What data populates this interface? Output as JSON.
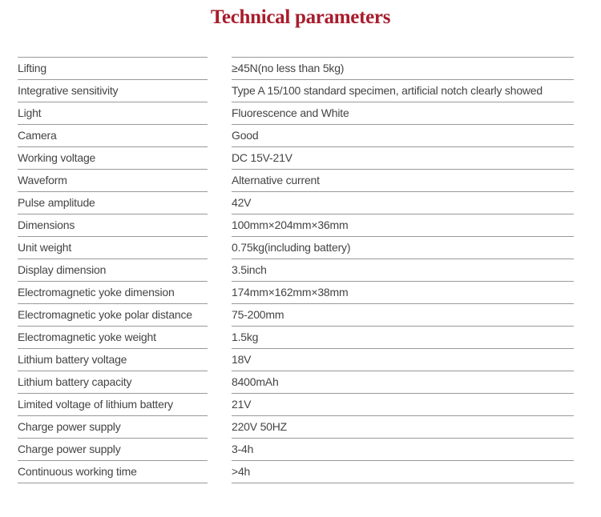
{
  "title": "Technical parameters",
  "accent_color": "#a81c2c",
  "rows": [
    {
      "label": "Lifting",
      "value": "≥45N(no less than 5kg)"
    },
    {
      "label": "Integrative sensitivity",
      "value": "Type A 15/100 standard specimen, artificial notch clearly showed"
    },
    {
      "label": "Light",
      "value": "Fluorescence and White"
    },
    {
      "label": "Camera",
      "value": "Good"
    },
    {
      "label": "Working voltage",
      "value": "DC 15V-21V"
    },
    {
      "label": "Waveform",
      "value": "Alternative current"
    },
    {
      "label": "Pulse amplitude",
      "value": "42V"
    },
    {
      "label": "Dimensions",
      "value": "100mm×204mm×36mm"
    },
    {
      "label": "Unit weight",
      "value": "0.75kg(including battery)"
    },
    {
      "label": "Display dimension",
      "value": "3.5inch"
    },
    {
      "label": "Electromagnetic yoke dimension",
      "value": "174mm×162mm×38mm"
    },
    {
      "label": "Electromagnetic yoke polar distance",
      "value": "75-200mm"
    },
    {
      "label": "Electromagnetic yoke weight",
      "value": "1.5kg"
    },
    {
      "label": "Lithium battery voltage",
      "value": "18V"
    },
    {
      "label": "Lithium battery capacity",
      "value": "8400mAh"
    },
    {
      "label": "Limited voltage of lithium battery",
      "value": "21V"
    },
    {
      "label": "Charge power supply",
      "value": "220V 50HZ"
    },
    {
      "label": "Charge power supply",
      "value": "3-4h"
    },
    {
      "label": "Continuous working time",
      "value": ">4h"
    }
  ]
}
